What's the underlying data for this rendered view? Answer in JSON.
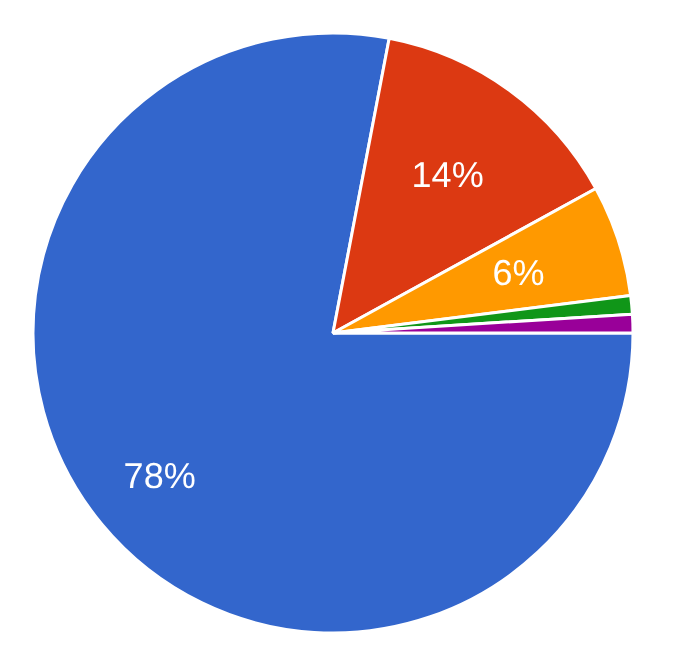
{
  "chart_data": {
    "type": "pie",
    "categories": [
      null,
      null,
      null,
      null,
      null
    ],
    "values": [
      78,
      14,
      6,
      1,
      1
    ],
    "colors": [
      "#3366cc",
      "#dc3912",
      "#ff9900",
      "#109618",
      "#990099"
    ],
    "value_labels": [
      "78%",
      "14%",
      "6%",
      null,
      null
    ]
  }
}
